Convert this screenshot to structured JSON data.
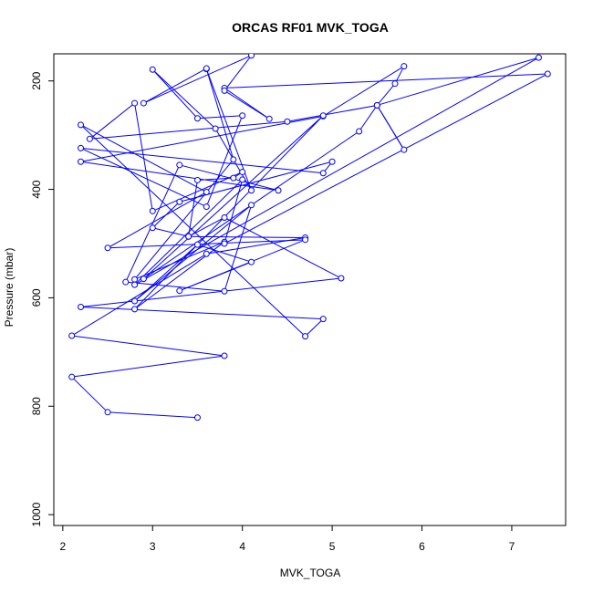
{
  "chart_data": {
    "type": "line",
    "title": "ORCAS RF01 MVK_TOGA",
    "xlabel": "MVK_TOGA",
    "ylabel": "Pressure (mbar)",
    "xlim": [
      1.9,
      7.6
    ],
    "ylim": [
      1020,
      150
    ],
    "y_reversed": true,
    "x_ticks": [
      2,
      3,
      4,
      5,
      6,
      7
    ],
    "y_ticks": [
      200,
      400,
      600,
      800,
      1000
    ],
    "grid": false,
    "color": "#0000ff",
    "series": [
      {
        "marker": "open-circle",
        "points": [
          [
            3.5,
            821
          ],
          [
            2.5,
            811
          ],
          [
            2.1,
            746
          ],
          [
            3.8,
            707
          ],
          [
            2.1,
            670
          ],
          [
            3.6,
            519
          ],
          [
            4.7,
            489
          ],
          [
            3.4,
            487
          ],
          [
            3.8,
            452
          ],
          [
            5.1,
            564
          ],
          [
            2.2,
            617
          ],
          [
            4.9,
            639
          ],
          [
            4.7,
            671
          ],
          [
            2.2,
            281
          ],
          [
            3.6,
            405
          ],
          [
            2.5,
            508
          ],
          [
            4.7,
            493
          ],
          [
            3.3,
            587
          ],
          [
            4.1,
            534
          ],
          [
            3.5,
            502
          ],
          [
            2.8,
            606
          ],
          [
            4.1,
            429
          ],
          [
            3.8,
            588
          ],
          [
            2.7,
            571
          ],
          [
            3.3,
            355
          ],
          [
            4.4,
            402
          ],
          [
            2.2,
            349
          ],
          [
            4.9,
            265
          ],
          [
            5.8,
            173
          ],
          [
            5.7,
            205
          ],
          [
            5.5,
            245
          ],
          [
            5.8,
            327
          ],
          [
            5.5,
            245
          ],
          [
            4.5,
            275
          ],
          [
            2.3,
            307
          ],
          [
            2.8,
            241
          ],
          [
            3.0,
            440
          ],
          [
            4.0,
            368
          ],
          [
            3.9,
            379
          ],
          [
            3.5,
            383
          ],
          [
            3.4,
            487
          ],
          [
            3.0,
            471
          ],
          [
            3.3,
            423
          ],
          [
            5.0,
            349
          ],
          [
            4.9,
            370
          ],
          [
            2.2,
            324
          ],
          [
            3.6,
            432
          ],
          [
            4.0,
            264
          ],
          [
            3.5,
            269
          ],
          [
            3.0,
            179
          ],
          [
            3.7,
            288
          ],
          [
            4.1,
            402
          ],
          [
            3.6,
            178
          ],
          [
            3.9,
            345
          ],
          [
            2.8,
            566
          ],
          [
            3.8,
            497
          ],
          [
            2.8,
            621
          ],
          [
            4.9,
            264
          ],
          [
            2.9,
            565
          ],
          [
            5.3,
            293
          ],
          [
            5.5,
            245
          ],
          [
            7.3,
            157
          ],
          [
            2.8,
            576
          ],
          [
            4.0,
            382
          ],
          [
            3.8,
            500
          ],
          [
            7.4,
            187
          ],
          [
            3.8,
            213
          ],
          [
            4.3,
            270
          ],
          [
            3.8,
            218
          ],
          [
            4.1,
            153
          ],
          [
            2.9,
            241
          ],
          [
            3.6,
            177
          ]
        ]
      }
    ]
  }
}
